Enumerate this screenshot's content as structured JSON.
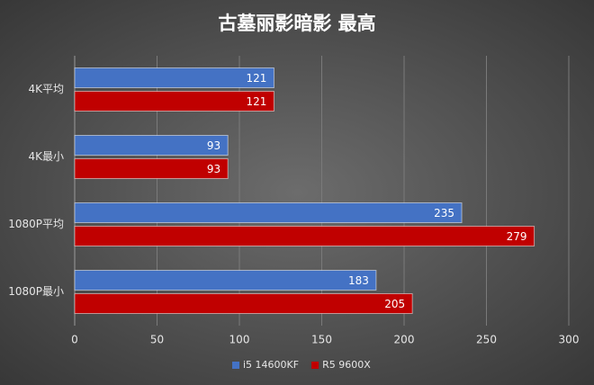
{
  "chart_data": {
    "type": "hbar",
    "title": "古墓丽影暗影 最高",
    "categories": [
      "4K平均",
      "4K最小",
      "1080P平均",
      "1080P最小"
    ],
    "series": [
      {
        "name": "i5 14600KF",
        "color": "#4472c4",
        "values": [
          121,
          93,
          235,
          183
        ]
      },
      {
        "name": "R5 9600X",
        "color": "#c00000",
        "values": [
          121,
          93,
          279,
          205
        ]
      }
    ],
    "xlim": [
      0,
      300
    ],
    "xticks": [
      0,
      50,
      100,
      150,
      200,
      250,
      300
    ],
    "grid": true,
    "legend": "bottom"
  }
}
